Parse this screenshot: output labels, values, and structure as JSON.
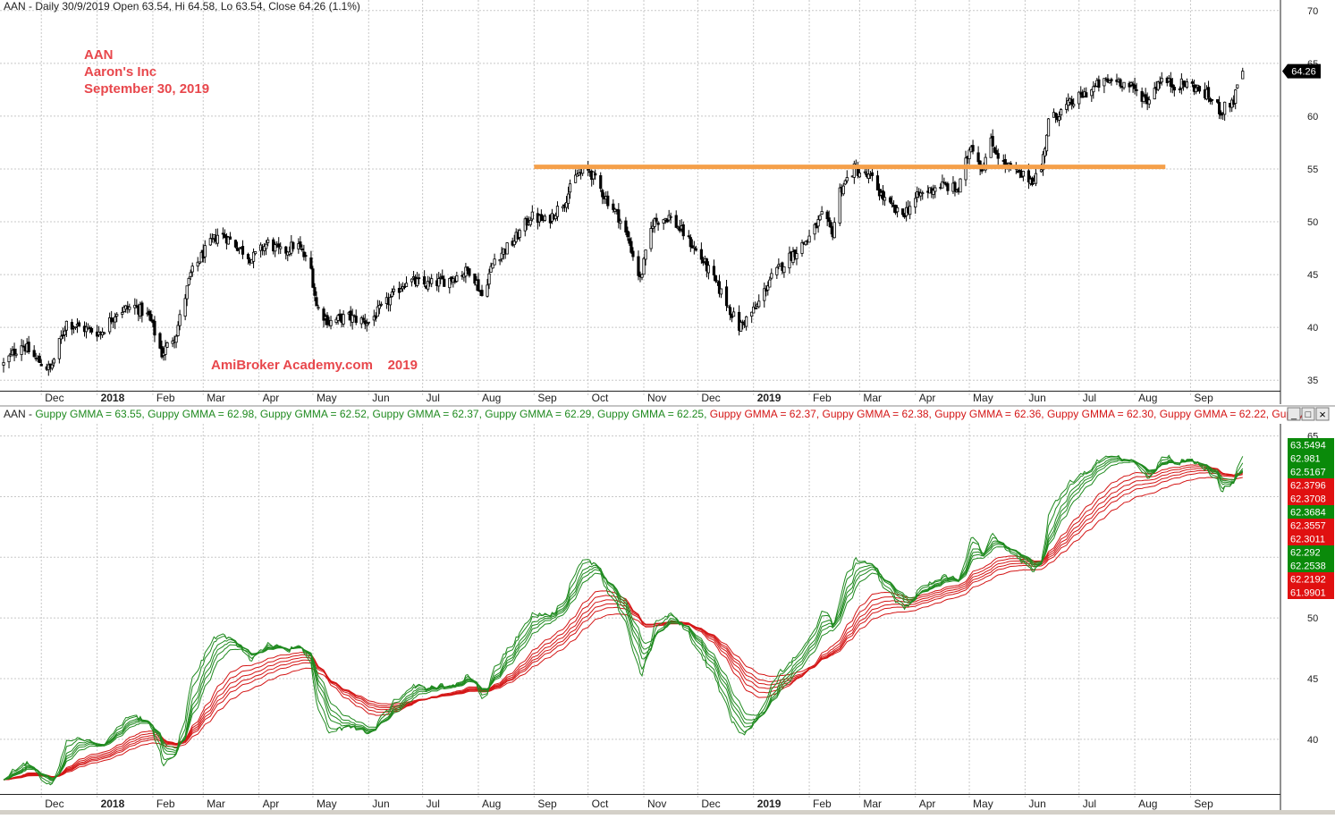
{
  "colors": {
    "background": "#ffffff",
    "grid": "#c8c8c8",
    "candle": "#000000",
    "annotation": "#e8474c",
    "resistance_line": "#f5a04a",
    "short_gmma": "#1f8a1f",
    "long_gmma": "#d41616",
    "last_price_badge": "#000000",
    "scrollbar": "#d4d0c8"
  },
  "chart_data": [
    {
      "type": "candlestick",
      "symbol": "AAN",
      "header": "AAN - Daily 30/9/2019 Open 63.54, Hi 64.58, Lo 63.54, Close 64.26 (1.1%)",
      "annotations": [
        "AAN",
        "Aaron's Inc",
        "September 30, 2019"
      ],
      "watermark": "AmiBroker Academy.com    2019",
      "ylim": [
        34,
        71
      ],
      "y_ticks": [
        35,
        40,
        45,
        50,
        55,
        60,
        65,
        70
      ],
      "last_price_label": "64.26",
      "resistance": {
        "level": 55.2,
        "from": "2018-09-01",
        "to": "2019-08-18"
      },
      "x_labels": [
        "Dec",
        "2018",
        "Feb",
        "Mar",
        "Apr",
        "May",
        "Jun",
        "Jul",
        "Aug",
        "Sep",
        "Oct",
        "Nov",
        "Dec",
        "2019",
        "Feb",
        "Mar",
        "Apr",
        "May",
        "Jun",
        "Jul",
        "Aug",
        "Sep"
      ],
      "path_anchors": [
        [
          "2017-11-10",
          36.5
        ],
        [
          "2017-11-20",
          38.5
        ],
        [
          "2017-11-28",
          37.0
        ],
        [
          "2017-12-06",
          36.0
        ],
        [
          "2017-12-15",
          40.5
        ],
        [
          "2017-12-22",
          40.0
        ],
        [
          "2018-01-03",
          39.5
        ],
        [
          "2018-01-12",
          41.5
        ],
        [
          "2018-01-22",
          42.0
        ],
        [
          "2018-01-30",
          41.0
        ],
        [
          "2018-02-06",
          37.5
        ],
        [
          "2018-02-14",
          39.5
        ],
        [
          "2018-02-22",
          45.0
        ],
        [
          "2018-03-01",
          47.0
        ],
        [
          "2018-03-10",
          49.0
        ],
        [
          "2018-03-18",
          48.0
        ],
        [
          "2018-03-28",
          46.5
        ],
        [
          "2018-04-06",
          48.0
        ],
        [
          "2018-04-14",
          47.0
        ],
        [
          "2018-04-22",
          48.0
        ],
        [
          "2018-04-30",
          45.5
        ],
        [
          "2018-05-03",
          42.0
        ],
        [
          "2018-05-10",
          40.5
        ],
        [
          "2018-05-20",
          41.0
        ],
        [
          "2018-06-01",
          40.5
        ],
        [
          "2018-06-12",
          42.5
        ],
        [
          "2018-06-22",
          44.5
        ],
        [
          "2018-07-03",
          44.0
        ],
        [
          "2018-07-15",
          44.5
        ],
        [
          "2018-07-28",
          45.5
        ],
        [
          "2018-08-03",
          43.0
        ],
        [
          "2018-08-10",
          46.5
        ],
        [
          "2018-08-20",
          48.0
        ],
        [
          "2018-08-30",
          50.5
        ],
        [
          "2018-09-08",
          50.0
        ],
        [
          "2018-09-18",
          52.0
        ],
        [
          "2018-09-25",
          54.5
        ],
        [
          "2018-10-02",
          54.8
        ],
        [
          "2018-10-10",
          52.5
        ],
        [
          "2018-10-18",
          50.5
        ],
        [
          "2018-10-24",
          48.0
        ],
        [
          "2018-10-30",
          44.5
        ],
        [
          "2018-11-06",
          50.0
        ],
        [
          "2018-11-15",
          50.5
        ],
        [
          "2018-11-25",
          48.5
        ],
        [
          "2018-12-05",
          46.0
        ],
        [
          "2018-12-15",
          43.0
        ],
        [
          "2018-12-24",
          40.0
        ],
        [
          "2019-01-03",
          42.0
        ],
        [
          "2019-01-10",
          44.5
        ],
        [
          "2019-01-20",
          46.5
        ],
        [
          "2019-02-01",
          48.5
        ],
        [
          "2019-02-08",
          50.5
        ],
        [
          "2019-02-14",
          49.0
        ],
        [
          "2019-02-18",
          53.0
        ],
        [
          "2019-02-26",
          55.0
        ],
        [
          "2019-03-08",
          54.0
        ],
        [
          "2019-03-15",
          52.0
        ],
        [
          "2019-03-24",
          50.5
        ],
        [
          "2019-04-03",
          52.5
        ],
        [
          "2019-04-15",
          53.5
        ],
        [
          "2019-04-25",
          53.0
        ],
        [
          "2019-05-02",
          57.5
        ],
        [
          "2019-05-08",
          55.0
        ],
        [
          "2019-05-13",
          57.5
        ],
        [
          "2019-05-20",
          55.5
        ],
        [
          "2019-05-28",
          54.5
        ],
        [
          "2019-06-05",
          54.0
        ],
        [
          "2019-06-10",
          55.0
        ],
        [
          "2019-06-14",
          59.5
        ],
        [
          "2019-06-25",
          61.0
        ],
        [
          "2019-07-03",
          62.0
        ],
        [
          "2019-07-12",
          63.0
        ],
        [
          "2019-07-22",
          63.5
        ],
        [
          "2019-08-01",
          62.5
        ],
        [
          "2019-08-08",
          61.5
        ],
        [
          "2019-08-15",
          63.5
        ],
        [
          "2019-08-22",
          63.0
        ],
        [
          "2019-09-01",
          63.0
        ],
        [
          "2019-09-10",
          62.0
        ],
        [
          "2019-09-18",
          60.5
        ],
        [
          "2019-09-25",
          61.5
        ],
        [
          "2019-09-30",
          64.26
        ]
      ]
    },
    {
      "type": "line",
      "title": "AAN - Guppy GMMA = 63.55, Guppy GMMA = 62.98, Guppy GMMA = 62.52, Guppy GMMA = 62.37, Guppy GMMA = 62.29, Guppy GMMA = 62.25, Guppy GMMA = 62.37, Guppy GMMA = 62.38, Guppy GMMA = 62.36, Guppy GMMA = 62.30, Guppy GMMA = 62.22, Guppy G",
      "title_segments": [
        {
          "text": "AAN - ",
          "color": "black"
        },
        {
          "text": "Guppy GMMA = 63.55, ",
          "color": "green"
        },
        {
          "text": "Guppy GMMA = 62.98, ",
          "color": "green"
        },
        {
          "text": "Guppy GMMA = 62.52, ",
          "color": "green"
        },
        {
          "text": "Guppy GMMA = 62.37, ",
          "color": "green"
        },
        {
          "text": "Guppy GMMA = 62.29, ",
          "color": "green"
        },
        {
          "text": "Guppy GMMA = 62.25, ",
          "color": "green"
        },
        {
          "text": "Guppy GMMA = 62.37, ",
          "color": "red"
        },
        {
          "text": "Guppy GMMA = 62.38, ",
          "color": "red"
        },
        {
          "text": "Guppy GMMA = 62.36, ",
          "color": "red"
        },
        {
          "text": "Guppy GMMA = 62.30, ",
          "color": "red"
        },
        {
          "text": "Guppy GMMA = 62.22, ",
          "color": "red"
        },
        {
          "text": "Guppy G",
          "color": "red"
        }
      ],
      "ylim": [
        35.5,
        66
      ],
      "y_ticks": [
        40,
        45,
        50,
        55,
        60,
        65
      ],
      "series_short": {
        "periods": [
          3,
          5,
          8,
          10,
          12,
          15
        ]
      },
      "series_long": {
        "periods": [
          30,
          35,
          40,
          45,
          50,
          60
        ]
      },
      "value_badges": [
        {
          "label": "63.5494",
          "color": "green"
        },
        {
          "label": "62.981",
          "color": "green"
        },
        {
          "label": "62.5167",
          "color": "green"
        },
        {
          "label": "62.3796",
          "color": "red"
        },
        {
          "label": "62.3708",
          "color": "red"
        },
        {
          "label": "62.3684",
          "color": "green"
        },
        {
          "label": "62.3557",
          "color": "red"
        },
        {
          "label": "62.3011",
          "color": "red"
        },
        {
          "label": "62.292",
          "color": "green"
        },
        {
          "label": "62.2538",
          "color": "green"
        },
        {
          "label": "62.2192",
          "color": "red"
        },
        {
          "label": "61.9901",
          "color": "red"
        }
      ],
      "x_labels": [
        "Dec",
        "2018",
        "Feb",
        "Mar",
        "Apr",
        "May",
        "Jun",
        "Jul",
        "Aug",
        "Sep",
        "Oct",
        "Nov",
        "Dec",
        "2019",
        "Feb",
        "Mar",
        "Apr",
        "May",
        "Jun",
        "Jul",
        "Aug",
        "Sep"
      ]
    }
  ],
  "window_controls": {
    "minimize": "_",
    "restore": "□",
    "close": "×"
  }
}
